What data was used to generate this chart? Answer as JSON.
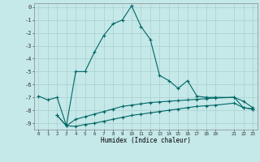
{
  "xlabel": "Humidex (Indice chaleur)",
  "bg_color": "#c5e8e8",
  "grid_color": "#aacfcf",
  "line_color": "#006666",
  "xlim_min": -0.5,
  "xlim_max": 23.5,
  "ylim_min": -9.5,
  "ylim_max": 0.3,
  "xtick_vals": [
    0,
    1,
    2,
    3,
    4,
    5,
    6,
    7,
    8,
    9,
    10,
    11,
    12,
    13,
    14,
    15,
    16,
    17,
    18,
    19,
    21,
    22,
    23
  ],
  "xtick_labels": [
    "0",
    "1",
    "2",
    "3",
    "4",
    "5",
    "6",
    "7",
    "8",
    "9",
    "10",
    "11",
    "12",
    "13",
    "14",
    "15",
    "16",
    "17",
    "18",
    "19",
    "21",
    "22",
    "23"
  ],
  "ytick_vals": [
    0,
    -1,
    -2,
    -3,
    -4,
    -5,
    -6,
    -7,
    -8,
    -9
  ],
  "line1_x": [
    0,
    1,
    2,
    3,
    4,
    5,
    6,
    7,
    8,
    9,
    10,
    11,
    12,
    13,
    14,
    15,
    16,
    17,
    18,
    19,
    21,
    22,
    23
  ],
  "line1_y": [
    -6.9,
    -7.2,
    -7.0,
    -9.2,
    -5.0,
    -5.0,
    -3.5,
    -2.2,
    -1.3,
    -1.0,
    0.1,
    -1.5,
    -2.5,
    -5.3,
    -5.7,
    -6.3,
    -5.7,
    -6.9,
    -7.0,
    -7.0,
    -7.0,
    -7.3,
    -7.8
  ],
  "line2_x": [
    2,
    3,
    4,
    5,
    6,
    7,
    8,
    9,
    10,
    11,
    12,
    13,
    14,
    15,
    16,
    17,
    18,
    19,
    21,
    22,
    23
  ],
  "line2_y": [
    -8.4,
    -9.2,
    -8.7,
    -8.5,
    -8.3,
    -8.1,
    -7.9,
    -7.7,
    -7.6,
    -7.5,
    -7.4,
    -7.35,
    -7.3,
    -7.25,
    -7.2,
    -7.15,
    -7.1,
    -7.05,
    -7.0,
    -7.8,
    -7.9
  ],
  "line3_x": [
    2,
    3,
    4,
    5,
    6,
    7,
    8,
    9,
    10,
    11,
    12,
    13,
    14,
    15,
    16,
    17,
    18,
    19,
    21,
    22,
    23
  ],
  "line3_y": [
    -8.4,
    -9.2,
    -9.25,
    -9.1,
    -9.0,
    -8.85,
    -8.7,
    -8.55,
    -8.4,
    -8.3,
    -8.2,
    -8.1,
    -8.0,
    -7.9,
    -7.8,
    -7.7,
    -7.65,
    -7.6,
    -7.45,
    -7.8,
    -7.9
  ]
}
